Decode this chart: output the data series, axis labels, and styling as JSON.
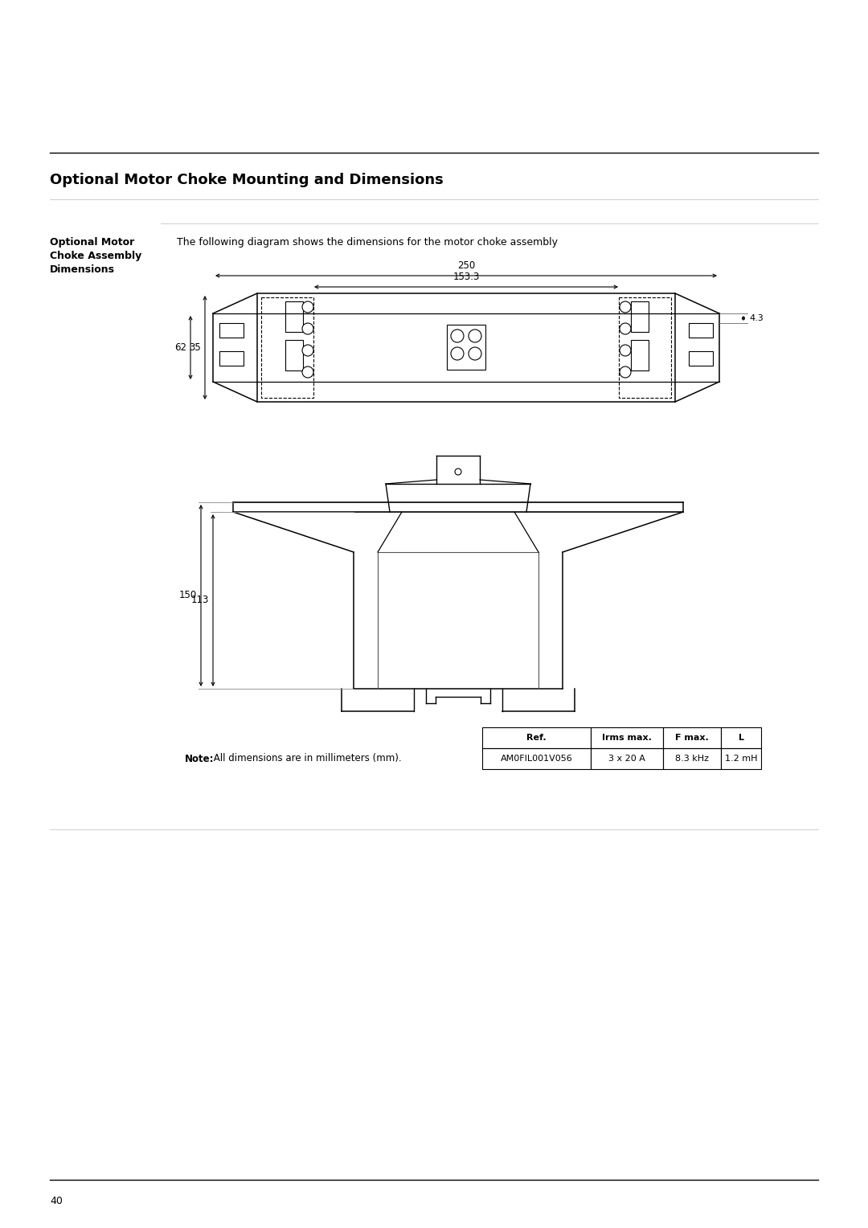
{
  "page_title": "Optional Motor Choke Mounting and Dimensions",
  "section_title": "Optional Motor\nChoke Assembly\nDimensions",
  "section_desc": "The following diagram shows the dimensions for the motor choke assembly",
  "dim_250": "250",
  "dim_153_3": "153.3",
  "dim_4_3": "4.3",
  "dim_62": "62",
  "dim_35": "35",
  "dim_150": "150",
  "dim_113": "113",
  "table_headers": [
    "Ref.",
    "Irms max.",
    "F max.",
    "L"
  ],
  "table_row": [
    "AM0FIL001V056",
    "3 x 20 A",
    "8.3 kHz",
    "1.2 mH"
  ],
  "note_bold": "Note:",
  "note_text": " All dimensions are in millimeters (mm).",
  "page_number": "40",
  "bg_color": "#ffffff",
  "title_fontsize": 13,
  "body_fontsize": 9
}
